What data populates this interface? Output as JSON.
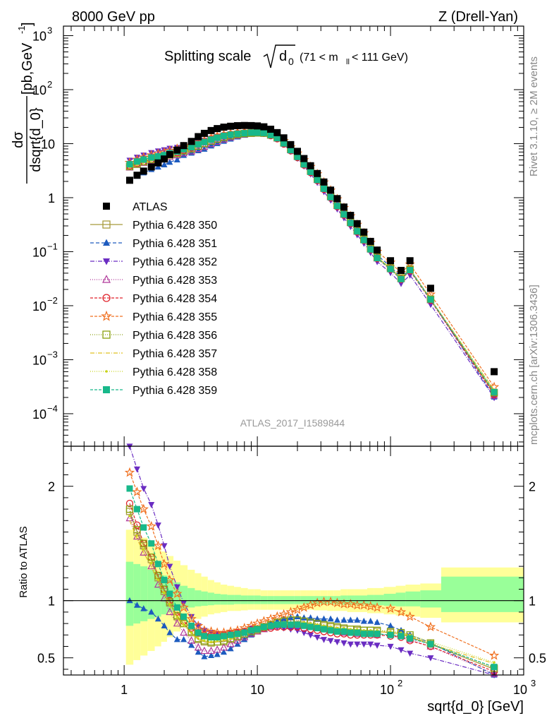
{
  "chart_data": {
    "type": "line",
    "header_left": "8000 GeV pp",
    "header_right": "Z (Drell-Yan)",
    "title": {
      "main": "Splitting scale",
      "sym": "d",
      "sub": "0",
      "range_open": "(71 < m",
      "range_sub": "ll",
      "range_close": " < 111 GeV)"
    },
    "ylabel_top": {
      "num": "dσ",
      "den": "dsqrt{d_0}",
      "units_open": " [pb,GeV",
      "units_sup": "-1",
      "units_close": "]"
    },
    "ylabel_bottom": "Ratio to ATLAS",
    "xlabel": "sqrt{d_0} [GeV]",
    "side_label_top": "Rivet 3.1.10, ≥ 2M events",
    "side_label_bottom": "mcplots.cern.ch [arXiv:1306.3436]",
    "watermark": "ATLAS_2017_I1589844",
    "xlim": [
      0.35,
      1000
    ],
    "ylim_top": [
      2.5e-05,
      1500
    ],
    "ylim_bottom": [
      0.35,
      2.35
    ],
    "x_ticks": [
      {
        "v": 1,
        "label": "1"
      },
      {
        "v": 10,
        "label": "10"
      },
      {
        "v": 100,
        "label": "10",
        "sup": "2"
      },
      {
        "v": 1000,
        "label": "10",
        "sup": "3"
      }
    ],
    "y_ticks_top": [
      {
        "v": 1000,
        "label": "10",
        "sup": "3"
      },
      {
        "v": 100,
        "label": "10",
        "sup": "2"
      },
      {
        "v": 10,
        "label": "10"
      },
      {
        "v": 1,
        "label": "1"
      },
      {
        "v": 0.1,
        "label": "10",
        "sup": "−1"
      },
      {
        "v": 0.01,
        "label": "10",
        "sup": "−2"
      },
      {
        "v": 0.001,
        "label": "10",
        "sup": "−3"
      },
      {
        "v": 0.0001,
        "label": "10",
        "sup": "−4"
      }
    ],
    "y_ticks_bottom": [
      {
        "v": 0.5,
        "label": "0.5"
      },
      {
        "v": 1,
        "label": "1"
      },
      {
        "v": 2,
        "label": "2"
      }
    ],
    "bins": [
      1.1,
      1.25,
      1.4,
      1.6,
      1.8,
      2.0,
      2.2,
      2.5,
      2.8,
      3.2,
      3.6,
      4.0,
      4.5,
      5.0,
      5.6,
      6.3,
      7.1,
      8.0,
      9.0,
      10.0,
      11.2,
      12.6,
      14.1,
      15.8,
      17.8,
      20.0,
      22.4,
      25.1,
      28.2,
      31.6,
      35.5,
      39.8,
      44.7,
      50.1,
      56.2,
      63.1,
      70.8,
      79.4,
      100,
      120,
      140,
      200,
      600
    ],
    "atlas": [
      2.1,
      2.6,
      3.1,
      3.7,
      4.4,
      5.2,
      6.3,
      7.6,
      9.2,
      11,
      13.5,
      15.5,
      17.5,
      19,
      20.2,
      21,
      21.5,
      21.7,
      21.6,
      21.3,
      20.5,
      18.5,
      16,
      12.8,
      9.6,
      7.2,
      5.3,
      3.9,
      2.8,
      1.95,
      1.38,
      0.96,
      0.67,
      0.47,
      0.33,
      0.23,
      0.155,
      0.107,
      0.068,
      0.045,
      0.068,
      0.021,
      0.0006
    ],
    "band_yellow": [
      [
        0.44,
        1.62
      ],
      [
        0.48,
        1.58
      ],
      [
        0.52,
        1.55
      ],
      [
        0.56,
        1.51
      ],
      [
        0.6,
        1.47
      ],
      [
        0.64,
        1.43
      ],
      [
        0.68,
        1.39
      ],
      [
        0.73,
        1.35
      ],
      [
        0.77,
        1.31
      ],
      [
        0.81,
        1.27
      ],
      [
        0.84,
        1.24
      ],
      [
        0.86,
        1.21
      ],
      [
        0.88,
        1.18
      ],
      [
        0.89,
        1.16
      ],
      [
        0.9,
        1.14
      ],
      [
        0.91,
        1.13
      ],
      [
        0.91,
        1.12
      ],
      [
        0.915,
        1.11
      ],
      [
        0.92,
        1.1
      ],
      [
        0.92,
        1.1
      ],
      [
        0.92,
        1.09
      ],
      [
        0.92,
        1.09
      ],
      [
        0.92,
        1.09
      ],
      [
        0.92,
        1.09
      ],
      [
        0.92,
        1.09
      ],
      [
        0.92,
        1.09
      ],
      [
        0.92,
        1.09
      ],
      [
        0.92,
        1.09
      ],
      [
        0.915,
        1.09
      ],
      [
        0.915,
        1.09
      ],
      [
        0.91,
        1.09
      ],
      [
        0.91,
        1.09
      ],
      [
        0.91,
        1.1
      ],
      [
        0.9,
        1.1
      ],
      [
        0.9,
        1.1
      ],
      [
        0.9,
        1.1
      ],
      [
        0.89,
        1.11
      ],
      [
        0.89,
        1.11
      ],
      [
        0.88,
        1.12
      ],
      [
        0.87,
        1.13
      ],
      [
        0.86,
        1.14
      ],
      [
        0.85,
        1.15
      ],
      [
        0.81,
        1.29
      ]
    ],
    "band_green": [
      [
        0.78,
        1.34
      ],
      [
        0.8,
        1.32
      ],
      [
        0.82,
        1.3
      ],
      [
        0.84,
        1.27
      ],
      [
        0.86,
        1.25
      ],
      [
        0.88,
        1.22
      ],
      [
        0.9,
        1.19
      ],
      [
        0.92,
        1.16
      ],
      [
        0.93,
        1.13
      ],
      [
        0.94,
        1.11
      ],
      [
        0.95,
        1.09
      ],
      [
        0.955,
        1.08
      ],
      [
        0.96,
        1.07
      ],
      [
        0.965,
        1.06
      ],
      [
        0.965,
        1.055
      ],
      [
        0.965,
        1.05
      ],
      [
        0.97,
        1.05
      ],
      [
        0.97,
        1.045
      ],
      [
        0.97,
        1.045
      ],
      [
        0.97,
        1.045
      ],
      [
        0.97,
        1.04
      ],
      [
        0.97,
        1.04
      ],
      [
        0.97,
        1.04
      ],
      [
        0.97,
        1.04
      ],
      [
        0.97,
        1.04
      ],
      [
        0.97,
        1.04
      ],
      [
        0.97,
        1.04
      ],
      [
        0.97,
        1.04
      ],
      [
        0.97,
        1.04
      ],
      [
        0.97,
        1.04
      ],
      [
        0.97,
        1.04
      ],
      [
        0.97,
        1.04
      ],
      [
        0.965,
        1.045
      ],
      [
        0.965,
        1.045
      ],
      [
        0.965,
        1.045
      ],
      [
        0.965,
        1.045
      ],
      [
        0.96,
        1.05
      ],
      [
        0.96,
        1.05
      ],
      [
        0.955,
        1.06
      ],
      [
        0.95,
        1.07
      ],
      [
        0.95,
        1.08
      ],
      [
        0.94,
        1.09
      ],
      [
        0.9,
        1.21
      ]
    ],
    "series": [
      {
        "name": "Pythia 6.428 350",
        "color": "#a89b3c",
        "marker": "square-open",
        "dash": "",
        "ratio": [
          1.78,
          1.6,
          1.48,
          1.36,
          1.2,
          1.08,
          0.98,
          0.86,
          0.8,
          0.72,
          0.66,
          0.64,
          0.63,
          0.64,
          0.64,
          0.66,
          0.68,
          0.7,
          0.72,
          0.74,
          0.76,
          0.78,
          0.8,
          0.81,
          0.81,
          0.82,
          0.81,
          0.8,
          0.79,
          0.78,
          0.77,
          0.76,
          0.75,
          0.75,
          0.74,
          0.74,
          0.74,
          0.73,
          0.72,
          0.71,
          0.68,
          0.62,
          0.4
        ]
      },
      {
        "name": "Pythia 6.428 351",
        "color": "#1d5bbf",
        "marker": "tri-up",
        "dash": "5,3",
        "ratio": [
          1.0,
          0.96,
          0.93,
          0.9,
          0.84,
          0.78,
          0.72,
          0.66,
          0.66,
          0.61,
          0.55,
          0.51,
          0.52,
          0.53,
          0.55,
          0.58,
          0.62,
          0.66,
          0.7,
          0.74,
          0.77,
          0.8,
          0.82,
          0.84,
          0.85,
          0.86,
          0.85,
          0.85,
          0.84,
          0.84,
          0.84,
          0.83,
          0.83,
          0.83,
          0.83,
          0.82,
          0.82,
          0.81,
          0.78,
          0.74,
          0.7,
          0.63,
          0.34
        ]
      },
      {
        "name": "Pythia 6.428 352",
        "color": "#6a2cc2",
        "marker": "tri-down",
        "dash": "6,2,1,2",
        "ratio": [
          2.35,
          2.15,
          1.98,
          1.84,
          1.66,
          1.48,
          1.3,
          1.12,
          0.98,
          0.86,
          0.78,
          0.74,
          0.72,
          0.71,
          0.71,
          0.72,
          0.73,
          0.74,
          0.76,
          0.76,
          0.77,
          0.78,
          0.77,
          0.76,
          0.75,
          0.74,
          0.72,
          0.7,
          0.68,
          0.66,
          0.65,
          0.64,
          0.63,
          0.62,
          0.62,
          0.62,
          0.62,
          0.61,
          0.6,
          0.57,
          0.54,
          0.5,
          0.33
        ]
      },
      {
        "name": "Pythia 6.428 353",
        "color": "#b0389a",
        "marker": "tri-up-open",
        "dash": "1,2",
        "ratio": [
          1.72,
          1.56,
          1.42,
          1.3,
          1.14,
          1.02,
          0.9,
          0.8,
          0.72,
          0.65,
          0.59,
          0.56,
          0.56,
          0.57,
          0.59,
          0.62,
          0.65,
          0.68,
          0.71,
          0.73,
          0.75,
          0.77,
          0.78,
          0.79,
          0.79,
          0.79,
          0.79,
          0.78,
          0.76,
          0.75,
          0.74,
          0.73,
          0.72,
          0.72,
          0.71,
          0.71,
          0.71,
          0.7,
          0.7,
          0.69,
          0.66,
          0.6,
          0.36
        ]
      },
      {
        "name": "Pythia 6.428 354",
        "color": "#e0222a",
        "marker": "circle-open",
        "dash": "4,2",
        "ratio": [
          1.85,
          1.66,
          1.5,
          1.38,
          1.22,
          1.1,
          1.0,
          0.9,
          0.82,
          0.76,
          0.72,
          0.7,
          0.7,
          0.7,
          0.7,
          0.71,
          0.72,
          0.73,
          0.74,
          0.75,
          0.76,
          0.76,
          0.77,
          0.77,
          0.77,
          0.77,
          0.76,
          0.75,
          0.74,
          0.73,
          0.72,
          0.71,
          0.71,
          0.7,
          0.7,
          0.7,
          0.7,
          0.7,
          0.69,
          0.68,
          0.65,
          0.6,
          0.38
        ]
      },
      {
        "name": "Pythia 6.428 355",
        "color": "#f07020",
        "marker": "star-open",
        "dash": "4,2",
        "ratio": [
          2.12,
          1.95,
          1.8,
          1.65,
          1.48,
          1.32,
          1.18,
          1.06,
          0.94,
          0.84,
          0.78,
          0.74,
          0.73,
          0.72,
          0.72,
          0.73,
          0.74,
          0.76,
          0.78,
          0.8,
          0.82,
          0.84,
          0.86,
          0.88,
          0.9,
          0.92,
          0.94,
          0.96,
          0.98,
          0.99,
          0.99,
          0.98,
          0.97,
          0.97,
          0.96,
          0.96,
          0.95,
          0.94,
          0.93,
          0.9,
          0.86,
          0.77,
          0.52
        ]
      },
      {
        "name": "Pythia 6.428 356",
        "color": "#8aa010",
        "marker": "square-open",
        "dash": "1,2",
        "ratio": [
          1.8,
          1.62,
          1.5,
          1.38,
          1.22,
          1.1,
          0.99,
          0.87,
          0.8,
          0.73,
          0.67,
          0.65,
          0.64,
          0.64,
          0.65,
          0.67,
          0.69,
          0.71,
          0.73,
          0.75,
          0.77,
          0.79,
          0.81,
          0.82,
          0.83,
          0.83,
          0.82,
          0.81,
          0.8,
          0.79,
          0.78,
          0.77,
          0.76,
          0.75,
          0.75,
          0.74,
          0.74,
          0.74,
          0.73,
          0.72,
          0.7,
          0.63,
          0.41
        ]
      },
      {
        "name": "Pythia 6.428 357",
        "color": "#e0c020",
        "marker": "none",
        "dash": "6,2,1,2",
        "ratio": [
          1.7,
          1.54,
          1.42,
          1.3,
          1.16,
          1.05,
          0.95,
          0.85,
          0.78,
          0.71,
          0.66,
          0.64,
          0.63,
          0.64,
          0.65,
          0.66,
          0.68,
          0.7,
          0.72,
          0.74,
          0.76,
          0.78,
          0.79,
          0.8,
          0.8,
          0.8,
          0.8,
          0.79,
          0.78,
          0.77,
          0.76,
          0.75,
          0.75,
          0.74,
          0.74,
          0.73,
          0.73,
          0.73,
          0.72,
          0.71,
          0.69,
          0.62,
          0.45
        ]
      },
      {
        "name": "Pythia 6.428 358",
        "color": "#c8d41a",
        "marker": "dot",
        "dash": "1,2",
        "ratio": [
          1.74,
          1.57,
          1.45,
          1.33,
          1.18,
          1.07,
          0.97,
          0.86,
          0.79,
          0.72,
          0.67,
          0.65,
          0.64,
          0.65,
          0.66,
          0.67,
          0.69,
          0.71,
          0.73,
          0.75,
          0.77,
          0.79,
          0.8,
          0.81,
          0.81,
          0.81,
          0.81,
          0.8,
          0.79,
          0.78,
          0.77,
          0.76,
          0.76,
          0.75,
          0.75,
          0.74,
          0.74,
          0.74,
          0.73,
          0.72,
          0.7,
          0.64,
          0.46
        ]
      },
      {
        "name": "Pythia 6.428 359",
        "color": "#18b88a",
        "marker": "square",
        "dash": "4,2",
        "ratio": [
          1.98,
          1.8,
          1.64,
          1.5,
          1.32,
          1.18,
          1.06,
          0.94,
          0.86,
          0.78,
          0.72,
          0.69,
          0.68,
          0.68,
          0.69,
          0.7,
          0.71,
          0.72,
          0.74,
          0.75,
          0.77,
          0.78,
          0.79,
          0.79,
          0.79,
          0.79,
          0.78,
          0.77,
          0.76,
          0.75,
          0.74,
          0.73,
          0.73,
          0.72,
          0.72,
          0.71,
          0.71,
          0.71,
          0.7,
          0.69,
          0.67,
          0.62,
          0.42
        ]
      }
    ],
    "legend_data_label": "ATLAS"
  }
}
